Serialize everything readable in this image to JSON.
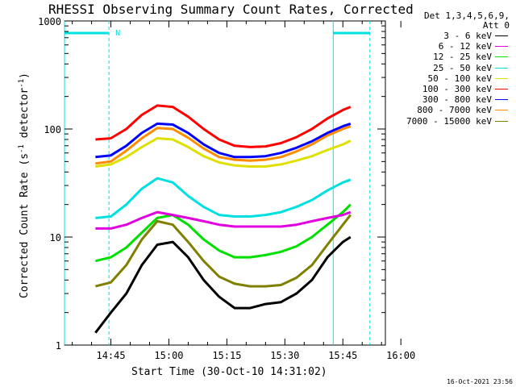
{
  "title": "RHESSI Observing Summary Count Rates, Corrected",
  "xlabel": "Start Time (30-Oct-10 14:31:02)",
  "ylabel_main": "Corrected Count Rate (s",
  "ylabel_sup1": "-1",
  "ylabel_mid": " detector",
  "ylabel_sup2": "-1",
  "ylabel_end": ")",
  "timestamp": "16-Oct-2021 23:56",
  "legend": {
    "header_line1": "Det 1,3,4,5,6,9,",
    "header_line2": "Att 0"
  },
  "annotation_n": "N",
  "chart_data": {
    "type": "line",
    "title": "RHESSI Observing Summary Count Rates, Corrected",
    "yscale": "log",
    "ylim": [
      1,
      1000
    ],
    "xlim_minutes": [
      -12,
      71
    ],
    "x_unit": "minutes after 14:45",
    "xticks": [
      {
        "label": "14:45",
        "minute": 0
      },
      {
        "label": "15:00",
        "minute": 15
      },
      {
        "label": "15:15",
        "minute": 30
      },
      {
        "label": "15:30",
        "minute": 45
      },
      {
        "label": "15:45",
        "minute": 60
      },
      {
        "label": "16:00",
        "minute": 75
      }
    ],
    "yticks": [
      {
        "label": "1",
        "value": 1
      },
      {
        "label": "10",
        "value": 10
      },
      {
        "label": "100",
        "value": 100
      },
      {
        "label": "1000",
        "value": 1000
      }
    ],
    "x": [
      -4,
      0,
      4,
      8,
      12,
      16,
      20,
      24,
      28,
      32,
      36,
      40,
      44,
      48,
      52,
      56,
      60,
      62
    ],
    "series": [
      {
        "name": "3 - 6 keV",
        "color": "#000000",
        "values": [
          1.3,
          2.0,
          3.0,
          5.5,
          8.5,
          9.0,
          6.5,
          4.0,
          2.8,
          2.2,
          2.2,
          2.4,
          2.5,
          3.0,
          4.0,
          6.5,
          9.0,
          10.0
        ]
      },
      {
        "name": "6 - 12 keV",
        "color": "#e000e0",
        "values": [
          12,
          12,
          13,
          15,
          17,
          16,
          15,
          14,
          13,
          12.5,
          12.5,
          12.5,
          12.5,
          13,
          14,
          15,
          16,
          17
        ]
      },
      {
        "name": "12 - 25 keV",
        "color": "#00e000",
        "values": [
          6,
          6.5,
          8,
          11,
          15,
          16,
          13,
          9.5,
          7.5,
          6.5,
          6.5,
          6.8,
          7.3,
          8.2,
          10,
          13,
          17,
          20
        ]
      },
      {
        "name": "25 - 50 keV",
        "color": "#00e0e0",
        "values": [
          15,
          15.5,
          20,
          28,
          35,
          32,
          24,
          19,
          16,
          15.5,
          15.5,
          16,
          17,
          19,
          22,
          27,
          32,
          34
        ]
      },
      {
        "name": "50 - 100 keV",
        "color": "#e0e000",
        "values": [
          45,
          47,
          55,
          68,
          82,
          80,
          68,
          56,
          49,
          46,
          45,
          45,
          47,
          51,
          56,
          64,
          72,
          78
        ]
      },
      {
        "name": "100 - 300 keV",
        "color": "#ff0000",
        "values": [
          80,
          82,
          100,
          135,
          165,
          160,
          130,
          100,
          80,
          70,
          68,
          69,
          74,
          84,
          100,
          125,
          150,
          160
        ]
      },
      {
        "name": "300 - 800 keV",
        "color": "#0000ff",
        "values": [
          55,
          57,
          70,
          92,
          112,
          110,
          92,
          72,
          60,
          55,
          55,
          56,
          60,
          67,
          77,
          92,
          106,
          112
        ]
      },
      {
        "name": "800 - 7000 keV",
        "color": "#ff8c00",
        "values": [
          48,
          50,
          63,
          82,
          102,
          100,
          83,
          66,
          55,
          52,
          51,
          52,
          55,
          62,
          72,
          87,
          100,
          106
        ]
      },
      {
        "name": "7000 - 15000 keV",
        "color": "#808000",
        "values": [
          3.5,
          3.8,
          5.5,
          9.5,
          14,
          13,
          9,
          6,
          4.3,
          3.7,
          3.5,
          3.5,
          3.6,
          4.2,
          5.5,
          8.5,
          13,
          16
        ]
      }
    ],
    "vertical_markers_minutes": [
      -12,
      -0.5,
      57.5,
      67
    ],
    "saa_bars": [
      [
        -12,
        -0.5
      ],
      [
        57.5,
        67
      ]
    ]
  }
}
